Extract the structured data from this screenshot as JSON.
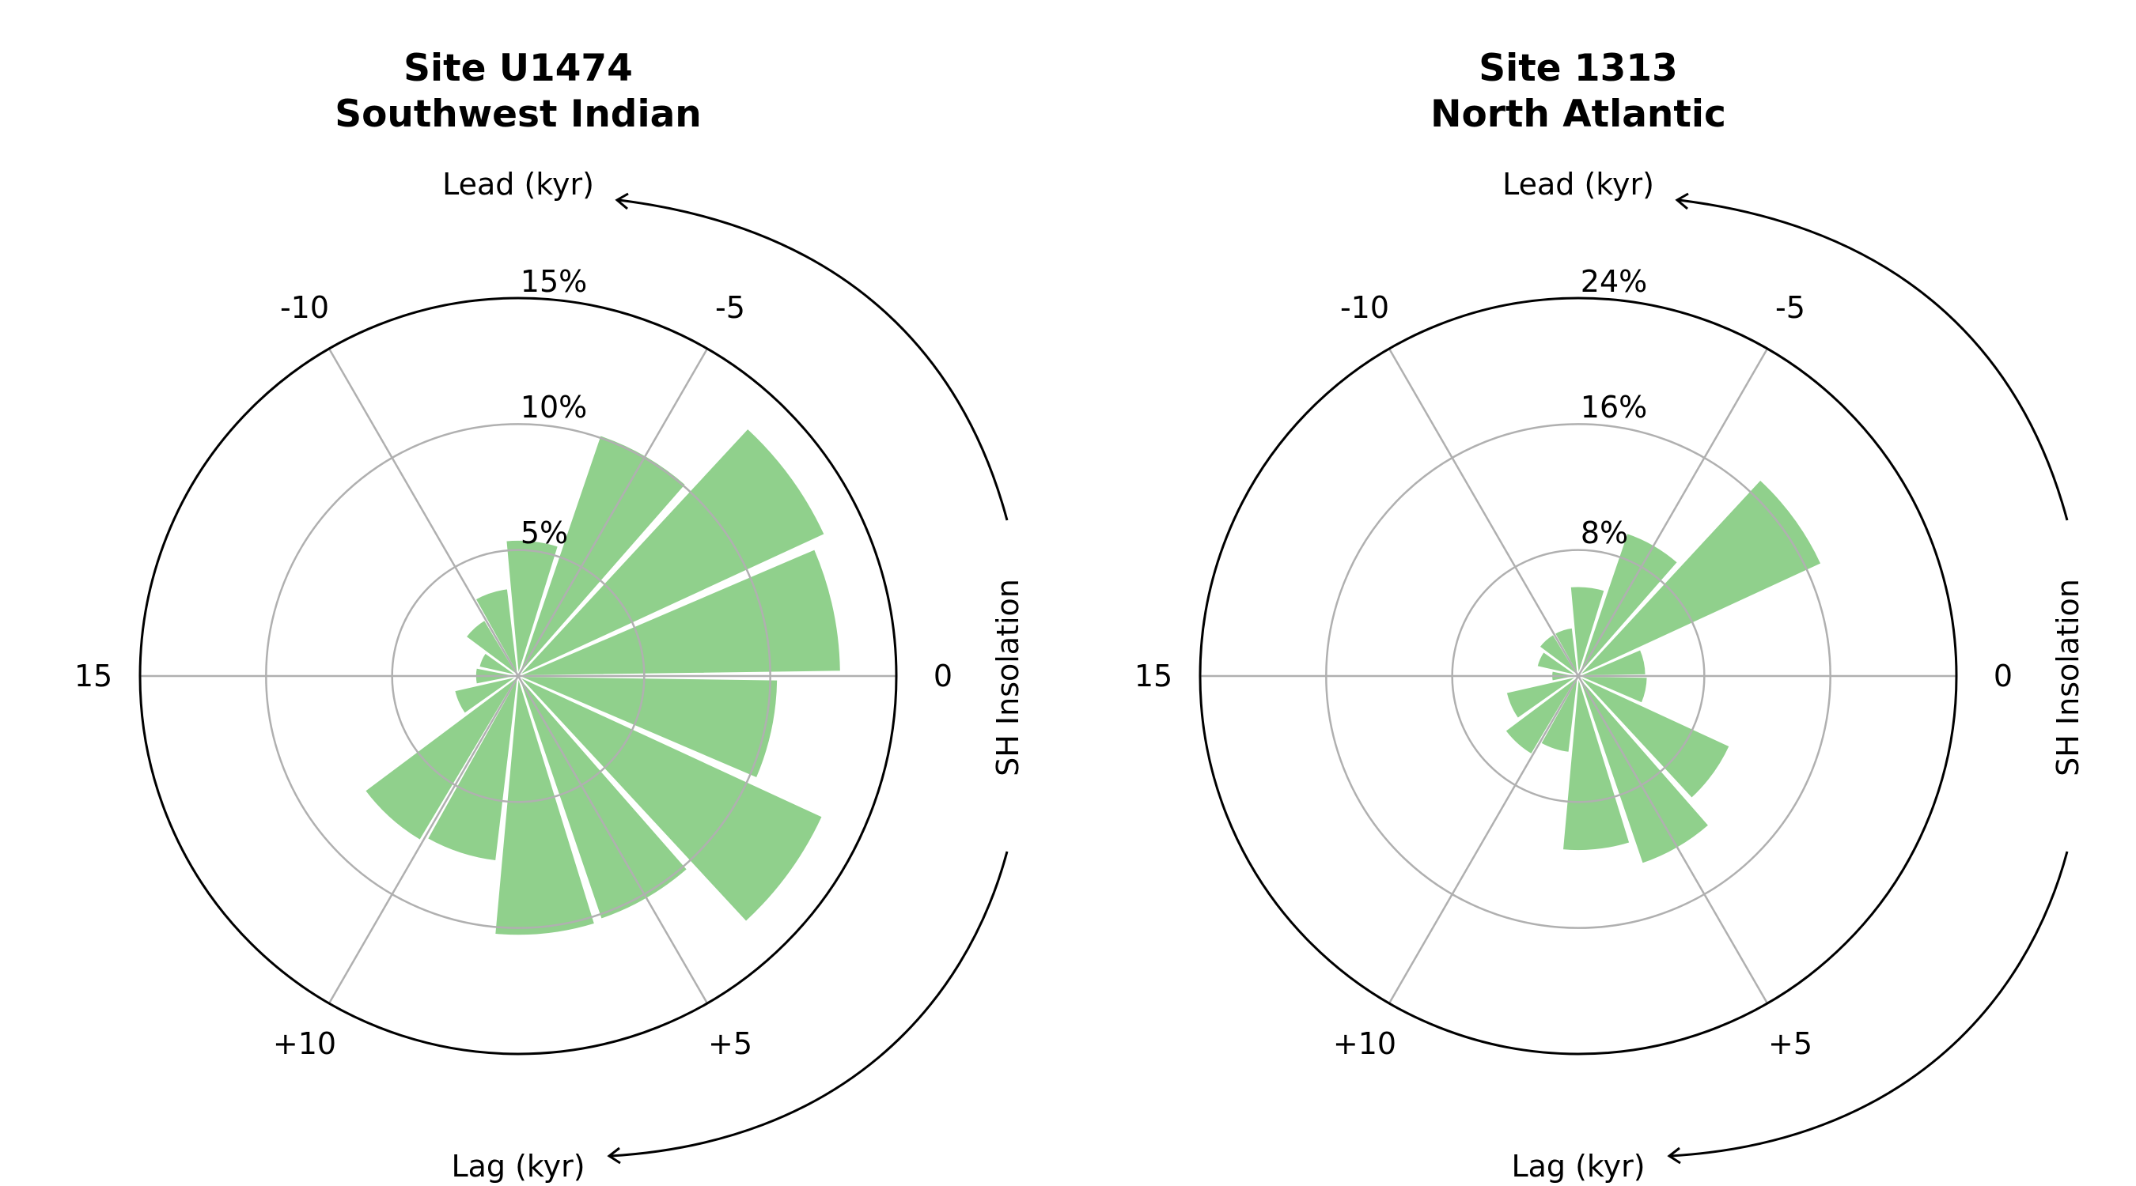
{
  "chart_data": [
    {
      "type": "polar-bar",
      "title_line1": "Site U1474",
      "title_line2": "Southwest Indian",
      "radial_max": 15,
      "radial_ticks": [
        5,
        10,
        15
      ],
      "radial_tick_labels": [
        "5%",
        "10%",
        "15%"
      ],
      "angle_tick_labels": [
        "0",
        "-5",
        "-10",
        "15",
        "+10",
        "+5"
      ],
      "lead_label": "Lead (kyr)",
      "lag_label": "Lag (kyr)",
      "reference_label": "SH Insolation",
      "bar_color": "#90d08c",
      "bars": [
        {
          "lead_lag_kyr": -1,
          "percent": 12.8
        },
        {
          "lead_lag_kyr": -3,
          "percent": 13.4
        },
        {
          "lead_lag_kyr": -5,
          "percent": 10.1
        },
        {
          "lead_lag_kyr": -7,
          "percent": 5.4
        },
        {
          "lead_lag_kyr": -9,
          "percent": 3.5
        },
        {
          "lead_lag_kyr": -11,
          "percent": 2.6
        },
        {
          "lead_lag_kyr": -13,
          "percent": 1.6
        },
        {
          "lead_lag_kyr": 15,
          "percent": 1.7
        },
        {
          "lead_lag_kyr": 13,
          "percent": 2.6
        },
        {
          "lead_lag_kyr": 11,
          "percent": 7.6
        },
        {
          "lead_lag_kyr": 9,
          "percent": 7.4
        },
        {
          "lead_lag_kyr": 7,
          "percent": 10.3
        },
        {
          "lead_lag_kyr": 5,
          "percent": 10.2
        },
        {
          "lead_lag_kyr": 3,
          "percent": 13.3
        },
        {
          "lead_lag_kyr": 1,
          "percent": 10.3
        }
      ]
    },
    {
      "type": "polar-bar",
      "title_line1": "Site 1313",
      "title_line2": "North Atlantic",
      "radial_max": 24,
      "radial_ticks": [
        8,
        16,
        24
      ],
      "radial_tick_labels": [
        "8%",
        "16%",
        "24%"
      ],
      "angle_tick_labels": [
        "0",
        "-5",
        "-10",
        "15",
        "+10",
        "+5"
      ],
      "lead_label": "Lead (kyr)",
      "lag_label": "Lag (kyr)",
      "reference_label": "SH Insolation",
      "bar_color": "#90d08c",
      "bars": [
        {
          "lead_lag_kyr": -1,
          "percent": 4.3
        },
        {
          "lead_lag_kyr": -3,
          "percent": 17.0
        },
        {
          "lead_lag_kyr": -5,
          "percent": 9.6
        },
        {
          "lead_lag_kyr": -7,
          "percent": 5.7
        },
        {
          "lead_lag_kyr": -9,
          "percent": 3.1
        },
        {
          "lead_lag_kyr": -11,
          "percent": 3.1
        },
        {
          "lead_lag_kyr": -13,
          "percent": 2.7
        },
        {
          "lead_lag_kyr": 15,
          "percent": 1.7
        },
        {
          "lead_lag_kyr": 13,
          "percent": 4.7
        },
        {
          "lead_lag_kyr": 11,
          "percent": 5.8
        },
        {
          "lead_lag_kyr": 9,
          "percent": 4.9
        },
        {
          "lead_lag_kyr": 7,
          "percent": 11.1
        },
        {
          "lead_lag_kyr": 5,
          "percent": 12.6
        },
        {
          "lead_lag_kyr": 3,
          "percent": 10.6
        },
        {
          "lead_lag_kyr": 1,
          "percent": 4.4
        }
      ]
    }
  ]
}
